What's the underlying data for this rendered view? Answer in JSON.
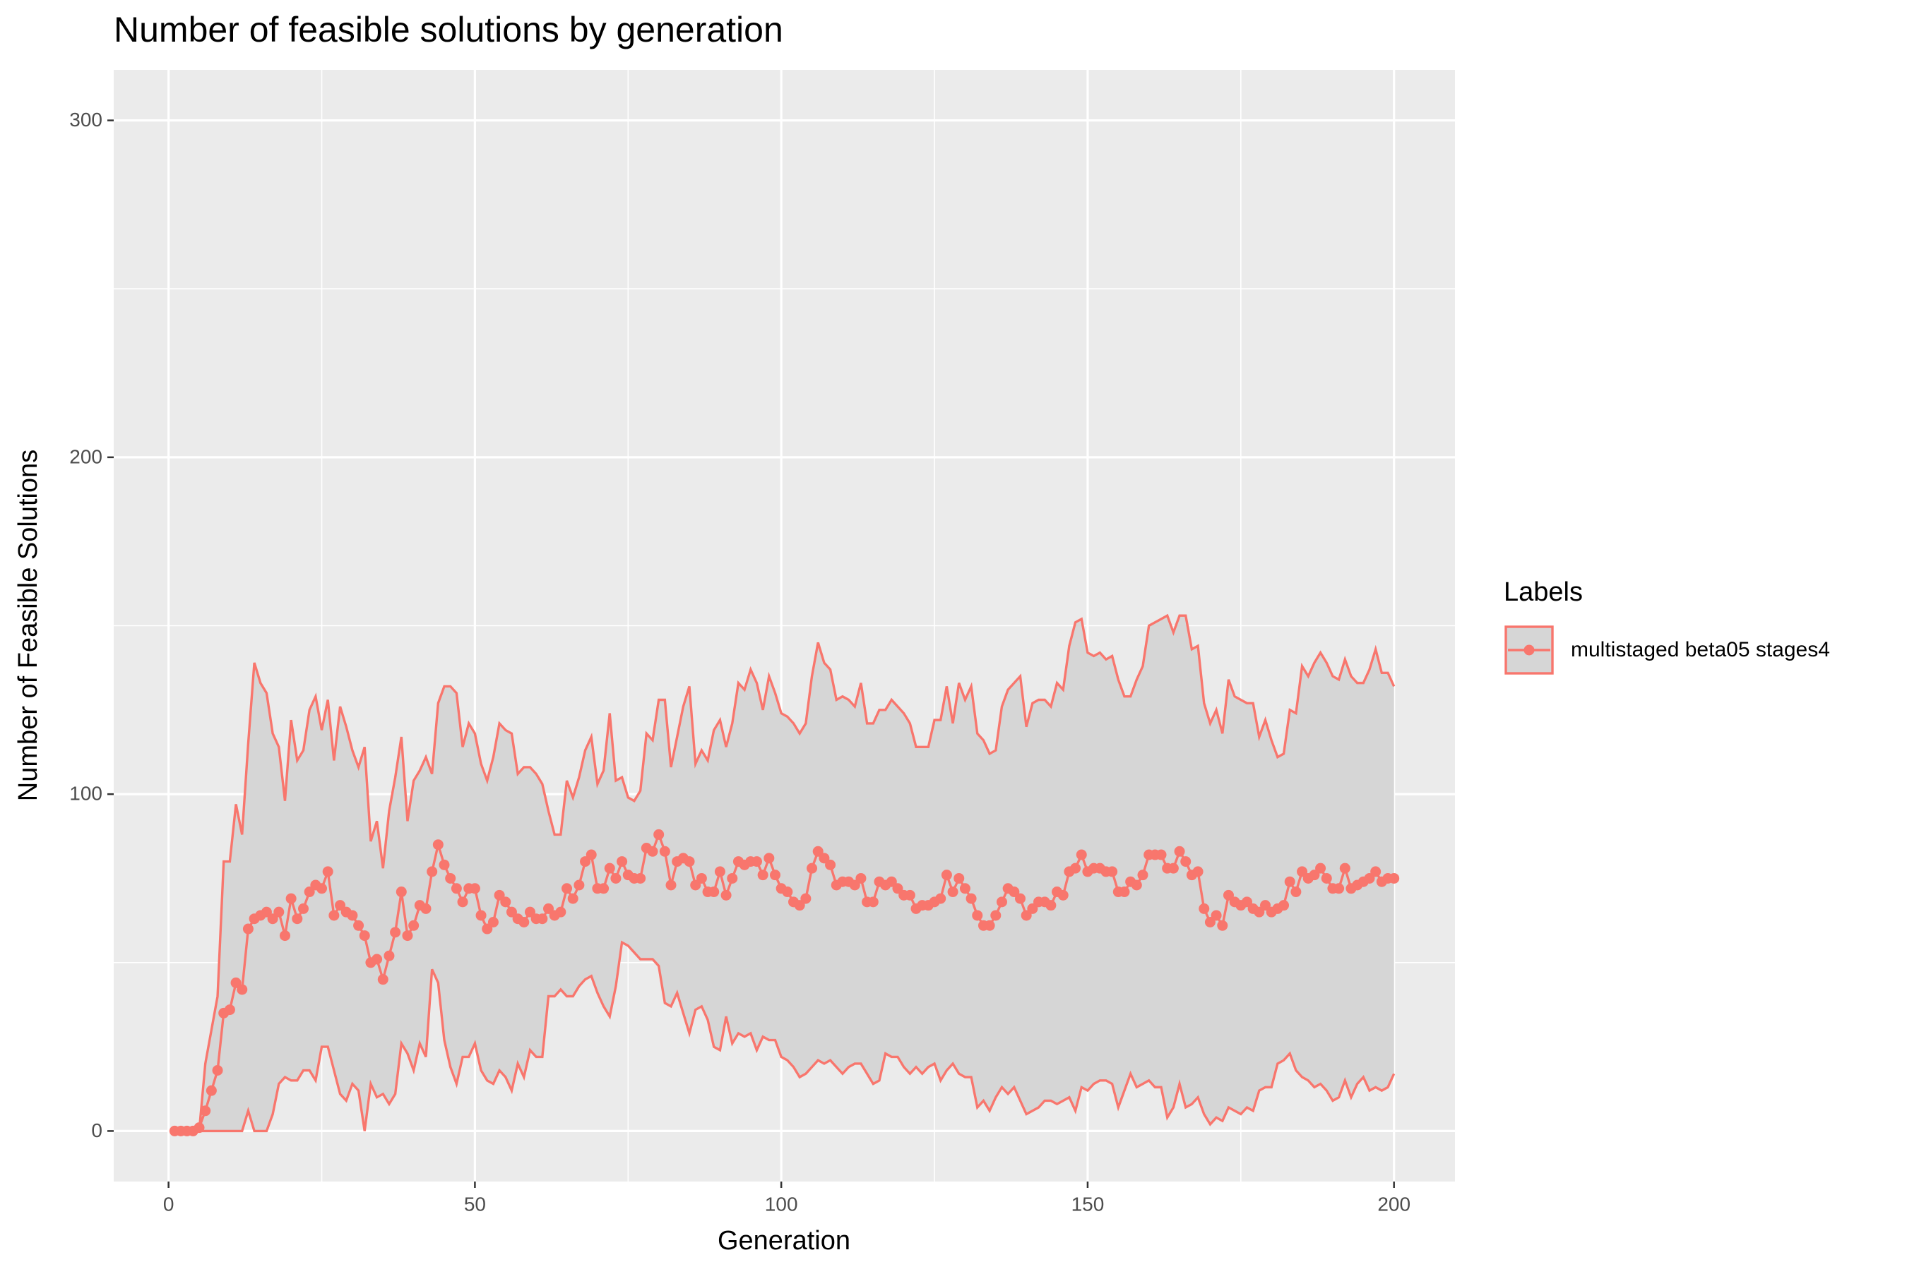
{
  "chart_data": {
    "type": "line",
    "title": "Number of feasible solutions by generation",
    "x_label": "Generation",
    "y_label": "Number of Feasible Solutions",
    "legend_title": "Labels",
    "legend_position": "right",
    "grid": true,
    "xlim": [
      -8.95,
      209.95
    ],
    "ylim": [
      -15,
      315
    ],
    "xticks": [
      0,
      50,
      100,
      150,
      200
    ],
    "yticks": [
      0,
      100,
      200,
      300
    ],
    "x": [
      1,
      2,
      3,
      4,
      5,
      6,
      7,
      8,
      9,
      10,
      11,
      12,
      13,
      14,
      15,
      16,
      17,
      18,
      19,
      20,
      21,
      22,
      23,
      24,
      25,
      26,
      27,
      28,
      29,
      30,
      31,
      32,
      33,
      34,
      35,
      36,
      37,
      38,
      39,
      40,
      41,
      42,
      43,
      44,
      45,
      46,
      47,
      48,
      49,
      50,
      51,
      52,
      53,
      54,
      55,
      56,
      57,
      58,
      59,
      60,
      61,
      62,
      63,
      64,
      65,
      66,
      67,
      68,
      69,
      70,
      71,
      72,
      73,
      74,
      75,
      76,
      77,
      78,
      79,
      80,
      81,
      82,
      83,
      84,
      85,
      86,
      87,
      88,
      89,
      90,
      91,
      92,
      93,
      94,
      95,
      96,
      97,
      98,
      99,
      100,
      101,
      102,
      103,
      104,
      105,
      106,
      107,
      108,
      109,
      110,
      111,
      112,
      113,
      114,
      115,
      116,
      117,
      118,
      119,
      120,
      121,
      122,
      123,
      124,
      125,
      126,
      127,
      128,
      129,
      130,
      131,
      132,
      133,
      134,
      135,
      136,
      137,
      138,
      139,
      140,
      141,
      142,
      143,
      144,
      145,
      146,
      147,
      148,
      149,
      150,
      151,
      152,
      153,
      154,
      155,
      156,
      157,
      158,
      159,
      160,
      161,
      162,
      163,
      164,
      165,
      166,
      167,
      168,
      169,
      170,
      171,
      172,
      173,
      174,
      175,
      176,
      177,
      178,
      179,
      180,
      181,
      182,
      183,
      184,
      185,
      186,
      187,
      188,
      189,
      190,
      191,
      192,
      193,
      194,
      195,
      196,
      197,
      198,
      199,
      200
    ],
    "series": [
      {
        "name": "multistaged beta05 stages4",
        "color": "#F8766D",
        "ribbon_color": "#d6d6d6",
        "values": [
          0,
          0,
          0,
          0,
          1,
          6,
          12,
          18,
          35,
          36,
          44,
          42,
          60,
          63,
          64,
          65,
          63,
          65,
          58,
          69,
          63,
          66,
          71,
          73,
          72,
          77,
          64,
          67,
          65,
          64,
          61,
          58,
          50,
          51,
          45,
          52,
          59,
          71,
          58,
          61,
          67,
          66,
          77,
          85,
          79,
          75,
          72,
          68,
          72,
          72,
          64,
          60,
          62,
          70,
          68,
          65,
          63,
          62,
          65,
          63,
          63,
          66,
          64,
          65,
          72,
          69,
          73,
          80,
          82,
          72,
          72,
          78,
          75,
          80,
          76,
          75,
          75,
          84,
          83,
          88,
          83,
          73,
          80,
          81,
          80,
          73,
          75,
          71,
          71,
          77,
          70,
          75,
          80,
          79,
          80,
          80,
          76,
          81,
          76,
          72,
          71,
          68,
          67,
          69,
          78,
          83,
          81,
          79,
          73,
          74,
          74,
          73,
          75,
          68,
          68,
          74,
          73,
          74,
          72,
          70,
          70,
          66,
          67,
          67,
          68,
          69,
          76,
          71,
          75,
          72,
          69,
          64,
          61,
          61,
          64,
          68,
          72,
          71,
          69,
          64,
          66,
          68,
          68,
          67,
          71,
          70,
          77,
          78,
          82,
          77,
          78,
          78,
          77,
          77,
          71,
          71,
          74,
          73,
          76,
          82,
          82,
          82,
          78,
          78,
          83,
          80,
          76,
          77,
          66,
          62,
          64,
          61,
          70,
          68,
          67,
          68,
          66,
          65,
          67,
          65,
          66,
          67,
          74,
          71,
          77,
          75,
          76,
          78,
          75,
          72,
          72,
          78,
          72,
          73,
          74,
          75,
          77,
          74,
          75,
          75
        ],
        "upper": [
          0,
          0,
          0,
          0,
          0,
          20,
          30,
          40,
          80,
          80,
          97,
          88,
          115,
          139,
          133,
          130,
          118,
          114,
          98,
          122,
          110,
          113,
          125,
          129,
          119,
          128,
          110,
          126,
          120,
          113,
          108,
          114,
          86,
          92,
          78,
          95,
          105,
          117,
          92,
          104,
          107,
          111,
          106,
          127,
          132,
          132,
          130,
          114,
          121,
          118,
          109,
          104,
          111,
          121,
          119,
          118,
          106,
          108,
          108,
          106,
          103,
          95,
          88,
          88,
          104,
          99,
          105,
          113,
          117,
          103,
          107,
          124,
          104,
          105,
          99,
          98,
          101,
          118,
          116,
          128,
          128,
          108,
          117,
          126,
          132,
          109,
          113,
          110,
          119,
          122,
          114,
          121,
          133,
          131,
          137,
          133,
          125,
          135,
          130,
          124,
          123,
          121,
          118,
          121,
          135,
          145,
          139,
          137,
          128,
          129,
          128,
          126,
          133,
          121,
          121,
          125,
          125,
          128,
          126,
          124,
          121,
          114,
          114,
          114,
          122,
          122,
          132,
          121,
          133,
          128,
          132,
          118,
          116,
          112,
          113,
          126,
          131,
          133,
          135,
          120,
          127,
          128,
          128,
          126,
          133,
          131,
          144,
          151,
          152,
          142,
          141,
          142,
          140,
          141,
          134,
          129,
          129,
          134,
          138,
          150,
          151,
          152,
          153,
          148,
          153,
          153,
          143,
          144,
          127,
          121,
          125,
          118,
          134,
          129,
          128,
          127,
          127,
          117,
          122,
          116,
          111,
          112,
          125,
          124,
          138,
          135,
          139,
          142,
          139,
          135,
          134,
          140,
          135,
          133,
          133,
          137,
          143,
          136,
          136,
          132
        ],
        "lower": [
          0,
          0,
          0,
          0,
          0,
          0,
          0,
          0,
          0,
          0,
          0,
          0,
          6,
          0,
          0,
          0,
          5,
          14,
          16,
          15,
          15,
          18,
          18,
          15,
          25,
          25,
          18,
          11,
          9,
          14,
          12,
          0,
          14,
          10,
          11,
          8,
          11,
          26,
          23,
          18,
          26,
          22,
          48,
          44,
          27,
          19,
          14,
          22,
          22,
          26,
          18,
          15,
          14,
          18,
          16,
          12,
          20,
          16,
          24,
          22,
          22,
          40,
          40,
          42,
          40,
          40,
          43,
          45,
          46,
          41,
          37,
          34,
          43,
          56,
          55,
          53,
          51,
          51,
          51,
          49,
          38,
          37,
          41,
          35,
          29,
          36,
          37,
          33,
          25,
          24,
          34,
          26,
          29,
          28,
          29,
          24,
          28,
          27,
          27,
          22,
          21,
          19,
          16,
          17,
          19,
          21,
          20,
          21,
          19,
          17,
          19,
          20,
          20,
          17,
          14,
          15,
          23,
          22,
          22,
          19,
          17,
          19,
          17,
          19,
          20,
          15,
          18,
          20,
          17,
          16,
          16,
          7,
          9,
          6,
          10,
          13,
          11,
          13,
          9,
          5,
          6,
          7,
          9,
          9,
          8,
          9,
          10,
          6,
          13,
          12,
          14,
          15,
          15,
          14,
          7,
          12,
          17,
          13,
          14,
          15,
          13,
          13,
          4,
          7,
          14,
          7,
          8,
          10,
          5,
          2,
          4,
          3,
          7,
          6,
          5,
          7,
          6,
          12,
          13,
          13,
          20,
          21,
          23,
          18,
          16,
          15,
          13,
          14,
          12,
          9,
          10,
          15,
          10,
          14,
          16,
          12,
          13,
          12,
          13,
          17
        ]
      }
    ]
  }
}
